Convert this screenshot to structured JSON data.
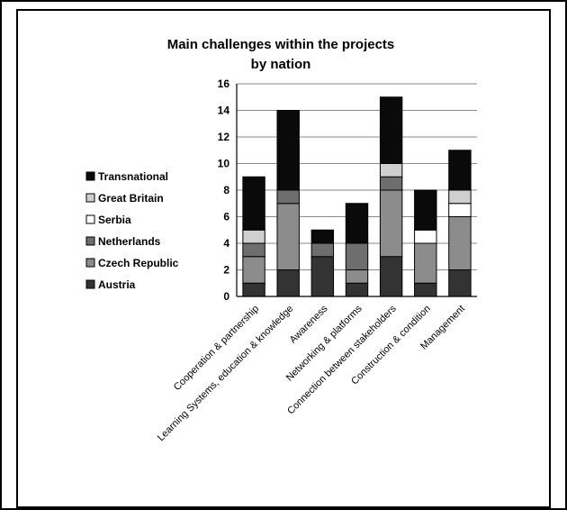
{
  "chart_data": {
    "type": "bar",
    "stacked": true,
    "title": "Main challenges within the projects by nation",
    "title_lines": [
      "Main challenges within the projects",
      "by nation"
    ],
    "categories": [
      "Cooperation & partnership",
      "Learning Systems, education & knowledge",
      "Awareness",
      "Networking & platforms",
      "Connection between stakeholders",
      "Construction & condition",
      "Management"
    ],
    "series": [
      {
        "name": "Austria",
        "color": "#333333",
        "values": [
          1,
          2,
          3,
          1,
          3,
          1,
          2
        ]
      },
      {
        "name": "Czech Republic",
        "color": "#8c8c8c",
        "values": [
          2,
          5,
          0,
          1,
          5,
          3,
          4
        ]
      },
      {
        "name": "Netherlands",
        "color": "#6e6e6e",
        "values": [
          1,
          1,
          1,
          2,
          1,
          0,
          0
        ]
      },
      {
        "name": "Serbia",
        "color": "#ffffff",
        "values": [
          0,
          0,
          0,
          0,
          0,
          1,
          1
        ]
      },
      {
        "name": "Great Britain",
        "color": "#cfcfcf",
        "values": [
          1,
          0,
          0,
          0,
          1,
          0,
          1
        ]
      },
      {
        "name": "Transnational",
        "color": "#0a0a0a",
        "values": [
          4,
          6,
          1,
          3,
          5,
          3,
          3
        ]
      }
    ],
    "legend_order": [
      "Transnational",
      "Great Britain",
      "Serbia",
      "Netherlands",
      "Czech Republic",
      "Austria"
    ],
    "ylim": [
      0,
      16
    ],
    "yticks": [
      0,
      2,
      4,
      6,
      8,
      10,
      12,
      14,
      16
    ],
    "grid": true,
    "legend_position": "left"
  }
}
